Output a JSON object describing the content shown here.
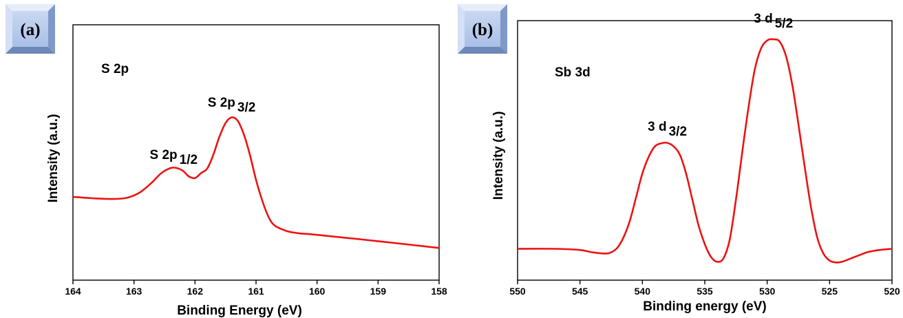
{
  "chart_data": [
    {
      "panel": "(a)",
      "type": "line",
      "annotation": "S 2p",
      "xlabel": "Binding Energy (eV)",
      "ylabel": "Intensity (a.u.)",
      "xlim": [
        164,
        158
      ],
      "ylim": [
        0,
        100
      ],
      "x_ticks": [
        "164",
        "163",
        "162",
        "161",
        "160",
        "159",
        "158"
      ],
      "peak_labels": [
        {
          "main": "S 2p",
          "sub": "1/2",
          "x": 162.35,
          "y": 44
        },
        {
          "main": "S 2p",
          "sub": "3/2",
          "x": 161.4,
          "y": 67
        }
      ],
      "series": [
        {
          "color": "#ee1111",
          "x": [
            164.0,
            163.6,
            163.3,
            163.1,
            162.9,
            162.7,
            162.55,
            162.4,
            162.3,
            162.2,
            162.1,
            162.0,
            161.9,
            161.8,
            161.7,
            161.6,
            161.5,
            161.4,
            161.3,
            161.2,
            161.1,
            161.0,
            160.9,
            160.8,
            160.7,
            160.5,
            160.3,
            160.0,
            159.0,
            158.0
          ],
          "y": [
            31.5,
            30.8,
            30.6,
            31.2,
            33.5,
            38.0,
            42.0,
            44.2,
            44.2,
            43.0,
            40.5,
            39.8,
            42.0,
            44.0,
            50.0,
            58.0,
            64.0,
            66.5,
            65.0,
            59.0,
            50.0,
            39.0,
            30.0,
            23.0,
            19.0,
            16.5,
            15.5,
            14.8,
            12.0,
            9.0
          ]
        }
      ]
    },
    {
      "panel": "(b)",
      "type": "line",
      "annotation": "Sb 3d",
      "xlabel": "Binding energy (eV)",
      "ylabel": "Intensity (a.u.)",
      "xlim": [
        550,
        520
      ],
      "ylim": [
        0,
        100
      ],
      "x_ticks": [
        "550",
        "545",
        "540",
        "535",
        "530",
        "525",
        "520"
      ],
      "peak_labels": [
        {
          "main": "3 d",
          "sub": "3/2",
          "x": 538,
          "y": 52
        },
        {
          "main": "3 d",
          "sub": "5/2",
          "x": 529.5,
          "y": 98
        }
      ],
      "series": [
        {
          "color": "#ee1111",
          "x": [
            550.0,
            547.0,
            545.0,
            544.0,
            543.0,
            542.5,
            542.0,
            541.5,
            541.0,
            540.5,
            540.0,
            539.5,
            539.0,
            538.5,
            538.0,
            537.5,
            537.0,
            536.5,
            536.0,
            535.5,
            535.0,
            534.5,
            534.0,
            533.5,
            533.0,
            532.5,
            532.0,
            531.5,
            531.0,
            530.5,
            530.0,
            529.5,
            529.0,
            528.5,
            528.0,
            527.5,
            527.0,
            526.5,
            526.0,
            525.5,
            525.0,
            524.5,
            524.0,
            523.0,
            522.0,
            521.0,
            520.0
          ],
          "y": [
            6.0,
            6.0,
            5.5,
            4.5,
            4.0,
            4.5,
            6.5,
            11.0,
            18.0,
            28.0,
            38.0,
            45.0,
            49.5,
            50.8,
            51.0,
            49.5,
            46.0,
            38.0,
            27.0,
            16.0,
            8.0,
            2.5,
            0.5,
            2.0,
            10.0,
            27.0,
            47.0,
            66.0,
            82.0,
            91.0,
            94.5,
            95.0,
            94.0,
            88.0,
            76.0,
            59.0,
            41.0,
            24.0,
            11.0,
            4.0,
            1.0,
            0.2,
            0.5,
            2.5,
            4.5,
            5.5,
            6.0
          ]
        }
      ]
    }
  ]
}
